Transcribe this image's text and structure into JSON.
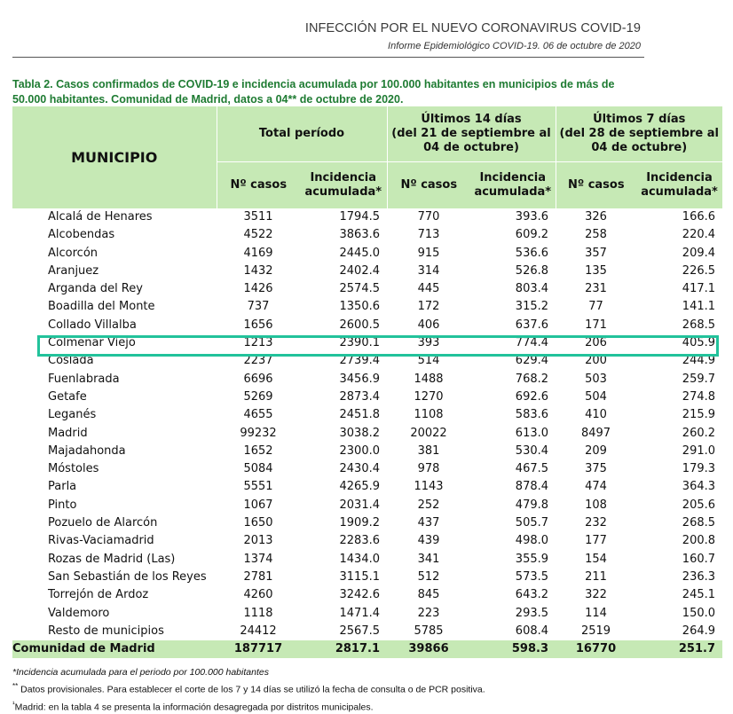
{
  "header": {
    "title": "INFECCIÓN POR EL NUEVO CORONAVIRUS COVID-19",
    "subtitle": "Informe Epidemiológico COVID-19. 06 de octubre de 2020"
  },
  "caption": "Tabla 2. Casos confirmados de COVID-19 e incidencia acumulada por 100.000 habitantes en municipios de más de 50.000 habitantes. Comunidad de Madrid, datos a 04** de octubre de 2020.",
  "table": {
    "col_municipio": "MUNICIPIO",
    "period_total": "Total período",
    "period_14_l1": "Últimos 14 días",
    "period_14_l2": "(del 21 de septiembre al",
    "period_14_l3": "04 de octubre)",
    "period_7_l1": "Últimos 7 días",
    "period_7_l2": "(del 28 de septiembre al",
    "period_7_l3": "04 de octubre)",
    "sub_cases": "Nº casos",
    "sub_inc_l1": "Incidencia",
    "sub_inc_l2": "acumulada*",
    "rows": [
      {
        "name": "Alcalá de Henares",
        "c": "3511",
        "i": "1794.5",
        "c14": "770",
        "i14": "393.6",
        "c7": "326",
        "i7": "166.6"
      },
      {
        "name": "Alcobendas",
        "c": "4522",
        "i": "3863.6",
        "c14": "713",
        "i14": "609.2",
        "c7": "258",
        "i7": "220.4"
      },
      {
        "name": "Alcorcón",
        "c": "4169",
        "i": "2445.0",
        "c14": "915",
        "i14": "536.6",
        "c7": "357",
        "i7": "209.4"
      },
      {
        "name": "Aranjuez",
        "c": "1432",
        "i": "2402.4",
        "c14": "314",
        "i14": "526.8",
        "c7": "135",
        "i7": "226.5"
      },
      {
        "name": "Arganda del Rey",
        "c": "1426",
        "i": "2574.5",
        "c14": "445",
        "i14": "803.4",
        "c7": "231",
        "i7": "417.1"
      },
      {
        "name": "Boadilla del Monte",
        "c": "737",
        "i": "1350.6",
        "c14": "172",
        "i14": "315.2",
        "c7": "77",
        "i7": "141.1"
      },
      {
        "name": "Collado Villalba",
        "c": "1656",
        "i": "2600.5",
        "c14": "406",
        "i14": "637.6",
        "c7": "171",
        "i7": "268.5"
      },
      {
        "name": "Colmenar Viejo",
        "c": "1213",
        "i": "2390.1",
        "c14": "393",
        "i14": "774.4",
        "c7": "206",
        "i7": "405.9"
      },
      {
        "name": "Coslada",
        "c": "2237",
        "i": "2739.4",
        "c14": "514",
        "i14": "629.4",
        "c7": "200",
        "i7": "244.9"
      },
      {
        "name": "Fuenlabrada",
        "c": "6696",
        "i": "3456.9",
        "c14": "1488",
        "i14": "768.2",
        "c7": "503",
        "i7": "259.7"
      },
      {
        "name": "Getafe",
        "c": "5269",
        "i": "2873.4",
        "c14": "1270",
        "i14": "692.6",
        "c7": "504",
        "i7": "274.8"
      },
      {
        "name": "Leganés",
        "c": "4655",
        "i": "2451.8",
        "c14": "1108",
        "i14": "583.6",
        "c7": "410",
        "i7": "215.9"
      },
      {
        "name": "Madrid",
        "c": "99232",
        "i": "3038.2",
        "c14": "20022",
        "i14": "613.0",
        "c7": "8497",
        "i7": "260.2"
      },
      {
        "name": "Majadahonda",
        "c": "1652",
        "i": "2300.0",
        "c14": "381",
        "i14": "530.4",
        "c7": "209",
        "i7": "291.0"
      },
      {
        "name": "Móstoles",
        "c": "5084",
        "i": "2430.4",
        "c14": "978",
        "i14": "467.5",
        "c7": "375",
        "i7": "179.3"
      },
      {
        "name": "Parla",
        "c": "5551",
        "i": "4265.9",
        "c14": "1143",
        "i14": "878.4",
        "c7": "474",
        "i7": "364.3"
      },
      {
        "name": "Pinto",
        "c": "1067",
        "i": "2031.4",
        "c14": "252",
        "i14": "479.8",
        "c7": "108",
        "i7": "205.6"
      },
      {
        "name": "Pozuelo de Alarcón",
        "c": "1650",
        "i": "1909.2",
        "c14": "437",
        "i14": "505.7",
        "c7": "232",
        "i7": "268.5"
      },
      {
        "name": "Rivas-Vaciamadrid",
        "c": "2013",
        "i": "2283.6",
        "c14": "439",
        "i14": "498.0",
        "c7": "177",
        "i7": "200.8"
      },
      {
        "name": "Rozas de Madrid (Las)",
        "c": "1374",
        "i": "1434.0",
        "c14": "341",
        "i14": "355.9",
        "c7": "154",
        "i7": "160.7"
      },
      {
        "name": "San Sebastián de los Reyes",
        "c": "2781",
        "i": "3115.1",
        "c14": "512",
        "i14": "573.5",
        "c7": "211",
        "i7": "236.3"
      },
      {
        "name": "Torrejón de Ardoz",
        "c": "4260",
        "i": "3242.6",
        "c14": "845",
        "i14": "643.2",
        "c7": "322",
        "i7": "245.1"
      },
      {
        "name": "Valdemoro",
        "c": "1118",
        "i": "1471.4",
        "c14": "223",
        "i14": "293.5",
        "c7": "114",
        "i7": "150.0"
      },
      {
        "name": "Resto de municipios",
        "c": "24412",
        "i": "2567.5",
        "c14": "5785",
        "i14": "608.4",
        "c7": "2519",
        "i7": "264.9"
      }
    ],
    "total": {
      "name": "Comunidad de Madrid",
      "c": "187717",
      "i": "2817.1",
      "c14": "39866",
      "i14": "598.3",
      "c7": "16770",
      "i7": "251.7"
    }
  },
  "highlighted_row": "Colmenar Viejo",
  "highlight_color": "#22c29b",
  "header_fill_color": "#c6e9b5",
  "caption_color": "#1e7b32",
  "notes": {
    "n1": "*Incidencia acumulada para el periodo por 100.000 habitantes",
    "n2_mark": "**",
    "n2": "Datos provisionales. Para establecer el corte de los 7 y 14 días se utilizó la fecha de consulta o de PCR positiva.",
    "n3_mark": "¹",
    "n3": "Madrid: en la tabla 4 se presenta la información desagregada por distritos municipales."
  }
}
